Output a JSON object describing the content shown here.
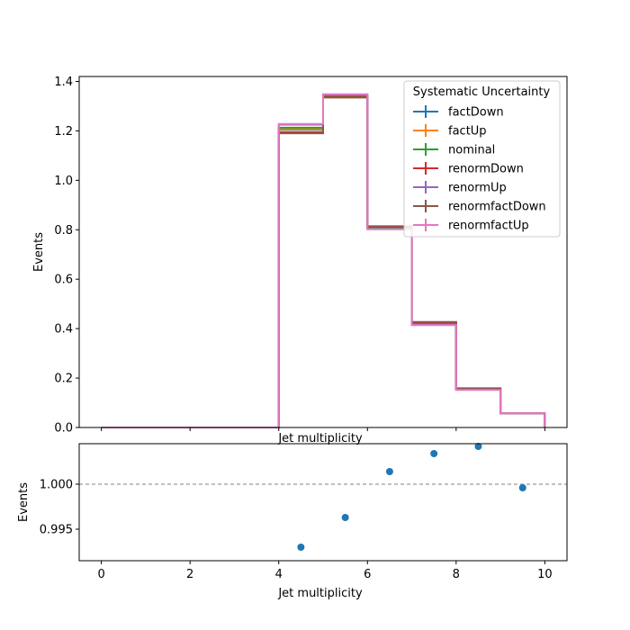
{
  "chart_data": [
    {
      "type": "line",
      "subtype": "step-histogram",
      "xlabel": "Jet multiplicity",
      "ylabel": "Events",
      "xlim": [
        -0.5,
        10.5
      ],
      "ylim": [
        0,
        1.42
      ],
      "xticks": [
        0,
        2,
        4,
        6,
        8,
        10
      ],
      "yticks": [
        "0.0",
        "0.2",
        "0.4",
        "0.6",
        "0.8",
        "1.0",
        "1.2",
        "1.4"
      ],
      "ytick_values": [
        0,
        0.2,
        0.4,
        0.6,
        0.8,
        1.0,
        1.2,
        1.4
      ],
      "bin_edges": [
        0,
        1,
        2,
        3,
        4,
        5,
        6,
        7,
        8,
        9,
        10
      ],
      "legend": {
        "title": "Systematic Uncertainty",
        "placement": "top-right"
      },
      "series": [
        {
          "name": "factDown",
          "color": "#1f77b4",
          "values": [
            0,
            0,
            0,
            0,
            1.205,
            1.339,
            0.809,
            0.422,
            0.156,
            0.058
          ]
        },
        {
          "name": "factUp",
          "color": "#ff7f0e",
          "values": [
            0,
            0,
            0,
            0,
            1.207,
            1.34,
            0.808,
            0.421,
            0.155,
            0.058
          ]
        },
        {
          "name": "nominal",
          "color": "#2ca02c",
          "values": [
            0,
            0,
            0,
            0,
            1.213,
            1.344,
            0.806,
            0.419,
            0.155,
            0.058
          ]
        },
        {
          "name": "renormDown",
          "color": "#d62728",
          "values": [
            0,
            0,
            0,
            0,
            1.195,
            1.337,
            0.812,
            0.425,
            0.158,
            0.058
          ]
        },
        {
          "name": "renormUp",
          "color": "#9467bd",
          "values": [
            0,
            0,
            0,
            0,
            1.225,
            1.347,
            0.803,
            0.415,
            0.153,
            0.058
          ]
        },
        {
          "name": "renormfactDown",
          "color": "#8c564b",
          "values": [
            0,
            0,
            0,
            0,
            1.19,
            1.335,
            0.814,
            0.427,
            0.159,
            0.058
          ]
        },
        {
          "name": "renormfactUp",
          "color": "#e377c2",
          "values": [
            0,
            0,
            0,
            0,
            1.228,
            1.348,
            0.802,
            0.414,
            0.152,
            0.058
          ]
        }
      ]
    },
    {
      "type": "scatter",
      "xlabel": "Jet multiplicity",
      "ylabel": "Events",
      "xlim": [
        -0.5,
        10.5
      ],
      "ylim": [
        0.9915,
        1.0045
      ],
      "xticks": [
        0,
        2,
        4,
        6,
        8,
        10
      ],
      "yticks": [
        "0.995",
        "1.000"
      ],
      "ytick_values": [
        0.995,
        1.0
      ],
      "reference_line": 1.0,
      "color": "#1f77b4",
      "x": [
        4.5,
        5.5,
        6.5,
        7.5,
        8.5,
        9.5
      ],
      "y": [
        0.993,
        0.9963,
        1.0014,
        1.0034,
        1.0042,
        0.9996
      ]
    }
  ]
}
